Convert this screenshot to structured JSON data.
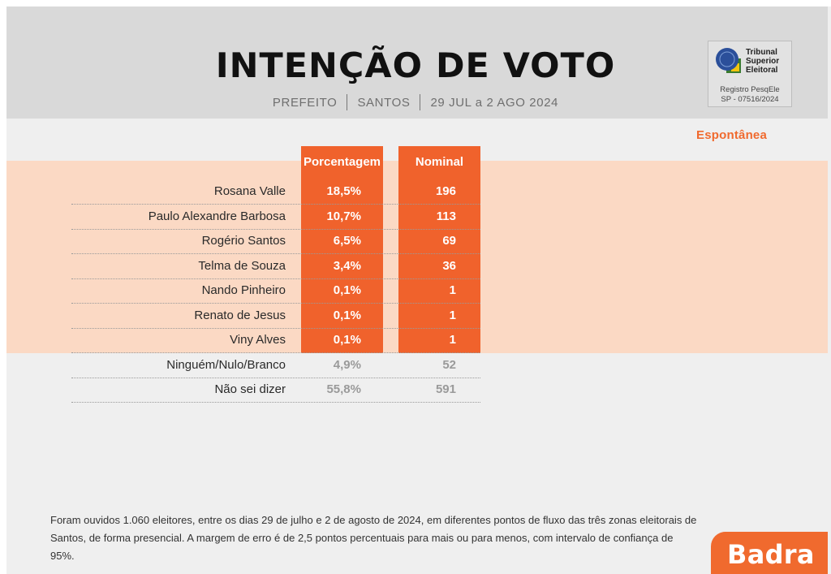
{
  "header": {
    "title": "INTENÇÃO DE VOTO",
    "subtitle_parts": [
      "PREFEITO",
      "SANTOS",
      "29 JUL a 2 AGO 2024"
    ]
  },
  "registry": {
    "org_line1": "Tribunal",
    "org_line2": "Superior",
    "org_line3": "Eleitoral",
    "reg_line1": "Registro PesqEle",
    "reg_line2": "SP - 07516/2024"
  },
  "section_label": "Espontânea",
  "chart_data": {
    "type": "table",
    "columns": [
      "Porcentagem",
      "Nominal"
    ],
    "rows": [
      {
        "name": "Rosana Valle",
        "pct": "18,5%",
        "nominal": "196",
        "highlight": true
      },
      {
        "name": "Paulo Alexandre Barbosa",
        "pct": "10,7%",
        "nominal": "113",
        "highlight": true
      },
      {
        "name": "Rogério Santos",
        "pct": "6,5%",
        "nominal": "69",
        "highlight": true
      },
      {
        "name": "Telma de Souza",
        "pct": "3,4%",
        "nominal": "36",
        "highlight": true
      },
      {
        "name": "Nando Pinheiro",
        "pct": "0,1%",
        "nominal": "1",
        "highlight": true
      },
      {
        "name": "Renato de Jesus",
        "pct": "0,1%",
        "nominal": "1",
        "highlight": true
      },
      {
        "name": "Viny Alves",
        "pct": "0,1%",
        "nominal": "1",
        "highlight": true
      },
      {
        "name": "Ninguém/Nulo/Branco",
        "pct": "4,9%",
        "nominal": "52",
        "highlight": false
      },
      {
        "name": "Não sei dizer",
        "pct": "55,8%",
        "nominal": "591",
        "highlight": false
      }
    ]
  },
  "footnote": "Foram ouvidos 1.060 eleitores, entre os dias 29 de julho e 2 de agosto de 2024, em diferentes pontos de fluxo das três zonas eleitorais de Santos, de forma presencial. A margem de erro é de 2,5 pontos percentuais para mais ou para menos, com intervalo de confiança de 95%.",
  "brand": "Badra",
  "colors": {
    "accent": "#f0622c",
    "highlight_band": "#fbd9c4",
    "muted": "#9a9a9a"
  }
}
